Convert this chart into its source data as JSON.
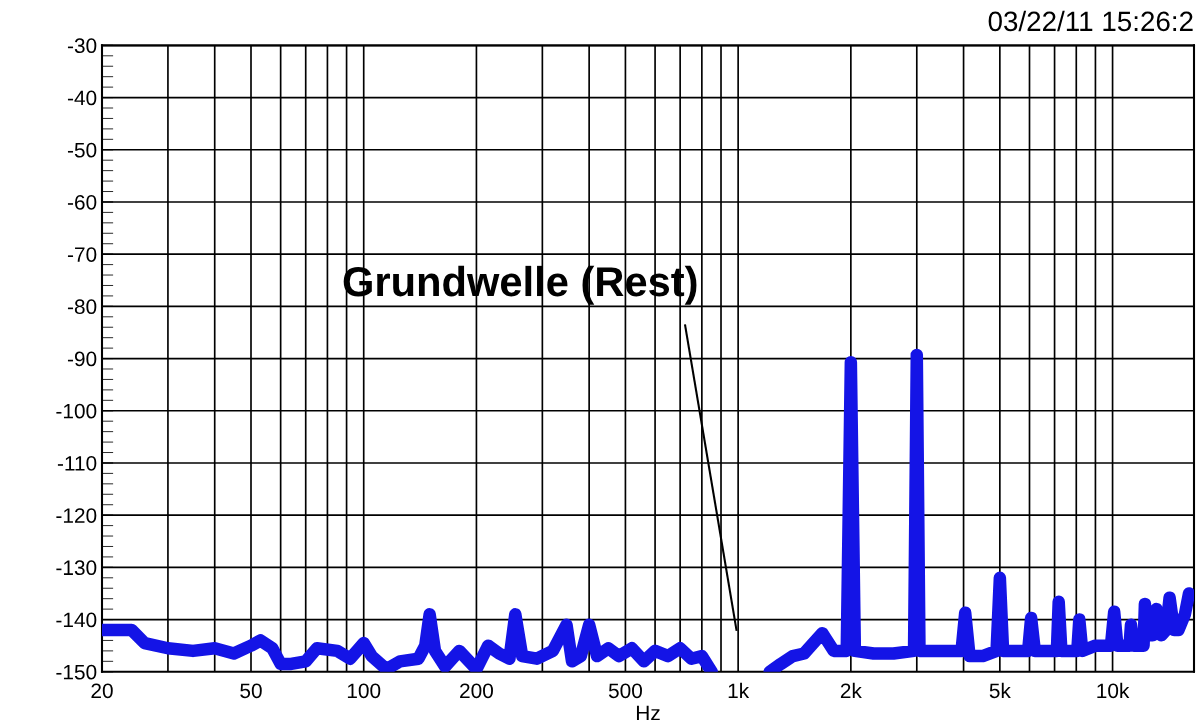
{
  "chart_data": {
    "type": "line",
    "xlabel": "Hz",
    "log": "x",
    "grid": true,
    "line_style": "solid",
    "marker": "none",
    "xlim": [
      20,
      16500
    ],
    "ylim": [
      -150,
      -30
    ],
    "xticks": [
      20,
      50,
      100,
      200,
      500,
      {
        "value": 1000,
        "label": "1k"
      },
      {
        "value": 2000,
        "label": "2k"
      },
      {
        "value": 5000,
        "label": "5k"
      },
      {
        "value": 10000,
        "label": "10k"
      }
    ],
    "yticks": [
      -30,
      -40,
      -50,
      -60,
      -70,
      -80,
      -90,
      -100,
      -110,
      -120,
      -130,
      -140,
      -150
    ],
    "annotations": [
      "Grundwelle (Rest)",
      "03/22/11 15:26:2"
    ],
    "series": [
      {
        "color": "#1414e6",
        "x": [
          20,
          24,
          26,
          30,
          35,
          40,
          45,
          50,
          53,
          57,
          60,
          64,
          70,
          75,
          85,
          92,
          100,
          105,
          115,
          125,
          140,
          146,
          150,
          155,
          165,
          180,
          200,
          215,
          230,
          245,
          254,
          265,
          290,
          320,
          348,
          360,
          380,
          400,
          420,
          450,
          480,
          520,
          560,
          600,
          650,
          700,
          750,
          800,
          850,
          870,
          1214,
          1300,
          1400,
          1500,
          1678,
          1800,
          1950,
          2000,
          2050,
          2300,
          2600,
          2950,
          3000,
          3050,
          3500,
          3950,
          4040,
          4150,
          4500,
          4900,
          5000,
          5100,
          5500,
          5950,
          6060,
          6200,
          6700,
          7100,
          7180,
          7300,
          7800,
          8050,
          8150,
          8300,
          9000,
          9900,
          10100,
          10300,
          10800,
          11100,
          11200,
          11400,
          11800,
          12100,
          12200,
          12400,
          12800,
          13100,
          13500,
          13900,
          14200,
          14600,
          15000,
          15600,
          16000
        ],
        "values": [
          -142,
          -142,
          -144.5,
          -145.5,
          -146,
          -145.5,
          -146.5,
          -145,
          -144,
          -145.5,
          -148.5,
          -148.5,
          -148,
          -145.5,
          -146,
          -147.5,
          -144.5,
          -147,
          -149.5,
          -148,
          -147.5,
          -145,
          -139,
          -146,
          -149,
          -146,
          -149.5,
          -145,
          -146.5,
          -147.5,
          -139,
          -147,
          -147.5,
          -146,
          -141,
          -148,
          -147,
          -141,
          -147,
          -145.5,
          -147,
          -145.5,
          -148,
          -146,
          -147,
          -145.5,
          -147.5,
          -147,
          -150,
          null,
          -150,
          -148.5,
          -147,
          -146.5,
          -142.6,
          -146,
          -146,
          -90.7,
          -146,
          -146.5,
          -146.5,
          -146,
          -89.3,
          -146,
          -146,
          -146,
          -138.7,
          -147,
          -147,
          -146,
          -132,
          -146,
          -146,
          -146,
          -139.7,
          -146,
          -146,
          -146,
          -136.6,
          -146,
          -146,
          -146,
          -140,
          -146,
          -145,
          -145,
          -138.5,
          -145,
          -145,
          -145,
          -141,
          -145,
          -145,
          -145,
          -137,
          -143,
          -143,
          -138,
          -143,
          -142,
          -135.8,
          -142,
          -142,
          -139,
          -135
        ]
      }
    ]
  }
}
